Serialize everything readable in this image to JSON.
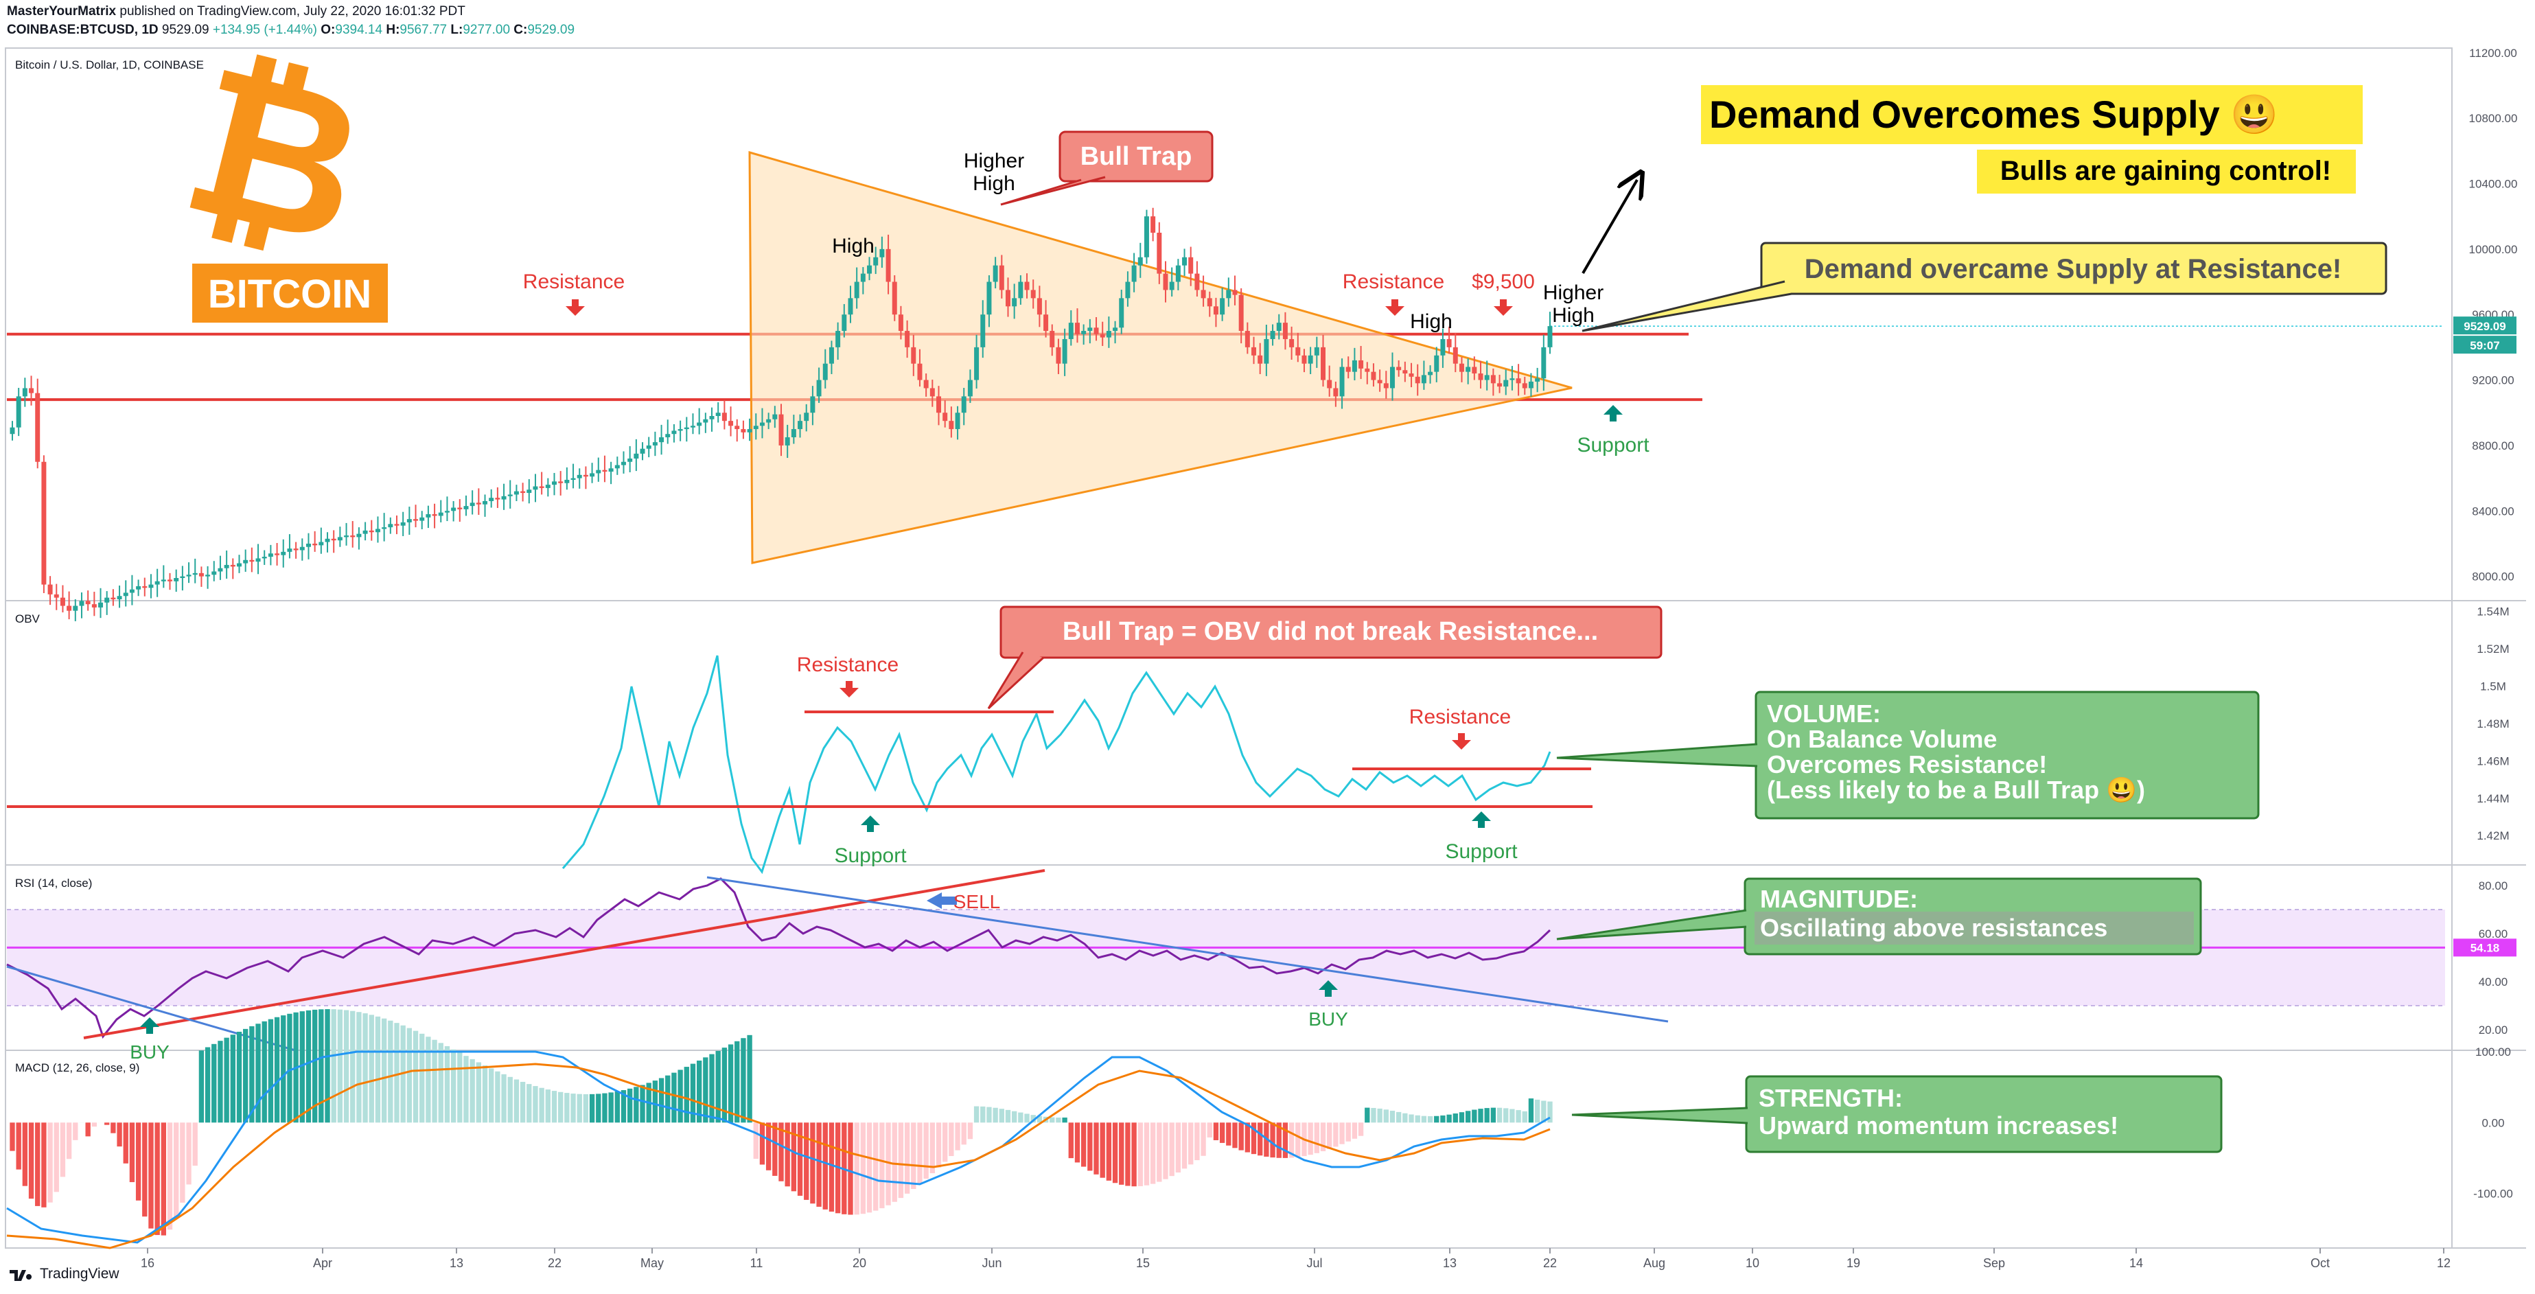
{
  "header": {
    "author": "MasterYourMatrix",
    "published_text": "published on TradingView.com, July 22, 2020 16:01:32 PDT",
    "symbol": "COINBASE:BTCUSD, 1D",
    "last": "9529.09",
    "change": "+134.95 (+1.44%)",
    "open_label": "O:",
    "open": "9394.14",
    "high_label": "H:",
    "high": "9567.77",
    "low_label": "L:",
    "low": "9277.00",
    "close_label": "C:",
    "close": "9529.09"
  },
  "footer": {
    "brand": "TradingView"
  },
  "colors": {
    "bull": "#26a69a",
    "bear": "#ef5350",
    "orange": "#f7931a",
    "yellow": "#ffeb3b",
    "green_box": "#81c784",
    "red_box": "#f28b82",
    "rsi_band": "#f3e5fc",
    "rsi_mid": "#e040fb",
    "obv": "#26c6da",
    "macd": "#2196f3",
    "signal": "#f57c00"
  },
  "chart_data": {
    "type": "candlestick",
    "price": {
      "title": "Bitcoin / U.S. Dollar, 1D, COINBASE",
      "ylim": [
        7860,
        11220
      ],
      "yticks": [
        "11200.00",
        "10800.00",
        "10400.00",
        "10000.00",
        "9600.00",
        "9200.00",
        "8800.00",
        "8400.00",
        "8000.00"
      ],
      "last_label": "9529.09",
      "countdown_label": "59:07",
      "closes": [
        8910,
        9100,
        9150,
        9120,
        8700,
        7950,
        7890,
        7870,
        7820,
        7790,
        7820,
        7850,
        7830,
        7810,
        7840,
        7870,
        7860,
        7880,
        7900,
        7920,
        7940,
        7930,
        7950,
        7970,
        7980,
        7970,
        7990,
        8000,
        8010,
        8020,
        8000,
        8010,
        8030,
        8050,
        8070,
        8060,
        8080,
        8100,
        8090,
        8110,
        8120,
        8140,
        8130,
        8150,
        8170,
        8160,
        8180,
        8200,
        8190,
        8210,
        8230,
        8220,
        8240,
        8250,
        8240,
        8260,
        8280,
        8270,
        8290,
        8300,
        8320,
        8310,
        8330,
        8350,
        8340,
        8360,
        8380,
        8370,
        8390,
        8400,
        8420,
        8410,
        8430,
        8450,
        8440,
        8460,
        8480,
        8470,
        8490,
        8500,
        8520,
        8510,
        8530,
        8550,
        8540,
        8560,
        8580,
        8570,
        8590,
        8600,
        8620,
        8610,
        8630,
        8650,
        8640,
        8660,
        8680,
        8700,
        8720,
        8750,
        8780,
        8800,
        8820,
        8850,
        8870,
        8890,
        8900,
        8910,
        8920,
        8940,
        8960,
        8980,
        9000,
        8950,
        8920,
        8900,
        8880,
        8900,
        8920,
        8940,
        8960,
        8990,
        8800,
        8850,
        8900,
        8950,
        9000,
        9100,
        9200,
        9300,
        9400,
        9500,
        9600,
        9700,
        9800,
        9850,
        9900,
        9950,
        10000,
        9800,
        9600,
        9500,
        9400,
        9300,
        9200,
        9150,
        9100,
        9000,
        8950,
        8900,
        9000,
        9100,
        9200,
        9400,
        9600,
        9800,
        9900,
        9750,
        9650,
        9700,
        9800,
        9750,
        9700,
        9600,
        9500,
        9400,
        9300,
        9450,
        9550,
        9480,
        9500,
        9520,
        9480,
        9460,
        9500,
        9520,
        9700,
        9800,
        9900,
        9950,
        10200,
        10100,
        9850,
        9750,
        9800,
        9900,
        9950,
        9850,
        9750,
        9700,
        9650,
        9600,
        9700,
        9750,
        9720,
        9500,
        9400,
        9350,
        9300,
        9450,
        9500,
        9550,
        9450,
        9400,
        9350,
        9300,
        9350,
        9400,
        9200,
        9150,
        9100,
        9280,
        9250,
        9320,
        9270,
        9250,
        9200,
        9180,
        9150,
        9280,
        9260,
        9240,
        9220,
        9180,
        9230,
        9250,
        9350,
        9450,
        9400,
        9300,
        9250,
        9280,
        9240,
        9200,
        9230,
        9180,
        9160,
        9200,
        9210,
        9180,
        9150,
        9190,
        9210,
        9400,
        9529.09
      ]
    },
    "obv": {
      "title": "OBV",
      "ylim": [
        1.405,
        1.545
      ],
      "yticks": [
        "1.54M",
        "1.52M",
        "1.5M",
        "1.48M",
        "1.46M",
        "1.44M",
        "1.42M"
      ]
    },
    "rsi": {
      "title": "RSI (14, close)",
      "ylim": [
        12,
        88
      ],
      "yticks": [
        "80.00",
        "60.00",
        "40.00",
        "20.00"
      ],
      "last_label": "54.18"
    },
    "macd": {
      "title": "MACD (12, 26, close, 9)",
      "ylim": [
        -175,
        100
      ],
      "yticks": [
        "100.00",
        "0.00",
        "-100.00"
      ]
    },
    "x_ticks": [
      "16",
      "Apr",
      "13",
      "22",
      "May",
      "11",
      "20",
      "Jun",
      "15",
      "Jul",
      "13",
      "22",
      "Aug",
      "10",
      "19",
      "Sep",
      "14",
      "Oct",
      "12"
    ]
  },
  "annotations": {
    "bitcoin_word": "BITCOIN",
    "bull_trap": "Bull Trap",
    "higher_high_1": "Higher\nHigh",
    "high_1": "High",
    "high_2": "High",
    "higher_high_2": "Higher\nHigh",
    "resistance_left": "Resistance",
    "resistance_right": "Resistance",
    "price_9500": "$9,500",
    "support": "Support",
    "headline": "Demand Overcomes Supply 😃",
    "subhead": "Bulls are gaining control!",
    "callout_price": "Demand overcame Supply at Resistance!",
    "obv_callout": "Bull Trap = OBV did not break Resistance...",
    "obv_resistance_1": "Resistance",
    "obv_resistance_2": "Resistance",
    "obv_support_1": "Support",
    "obv_support_2": "Support",
    "volume_box": [
      "VOLUME:",
      "On Balance Volume",
      "Overcomes Resistance!",
      "(Less likely to be a Bull Trap 😃)"
    ],
    "rsi_sell": "SELL",
    "rsi_buy": "BUY",
    "rsi_buy_left": "BUY",
    "magnitude_box": [
      "MAGNITUDE:",
      "Oscillating above resistances"
    ],
    "strength_box": [
      "STRENGTH:",
      "Upward momentum increases!"
    ]
  }
}
